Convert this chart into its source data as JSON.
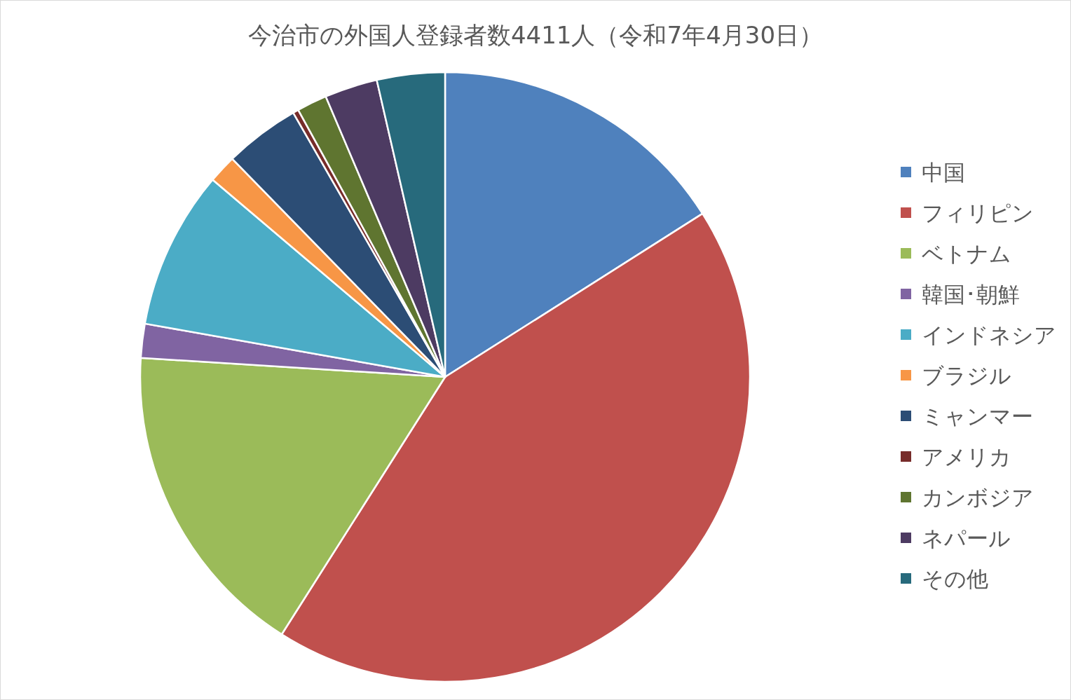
{
  "chart_data": {
    "type": "pie",
    "title": "今治市の外国人登録者数4411人（令和7年4月30日）",
    "categories": [
      "中国",
      "フィリピン",
      "ベトナム",
      "韓国･朝鮮",
      "インドネシア",
      "ブラジル",
      "ミャンマー",
      "アメリカ",
      "カンボジア",
      "ネパール",
      "その他"
    ],
    "values": [
      16.0,
      43.0,
      17.0,
      1.8,
      8.4,
      1.5,
      4.0,
      0.3,
      1.6,
      2.8,
      3.6
    ],
    "colors": [
      "#4f81bd",
      "#c0504d",
      "#9bbb59",
      "#8064a2",
      "#4bacc6",
      "#f79646",
      "#2c4d75",
      "#772c2a",
      "#5f7530",
      "#4d3b62",
      "#276a7c"
    ],
    "legend": "right"
  }
}
